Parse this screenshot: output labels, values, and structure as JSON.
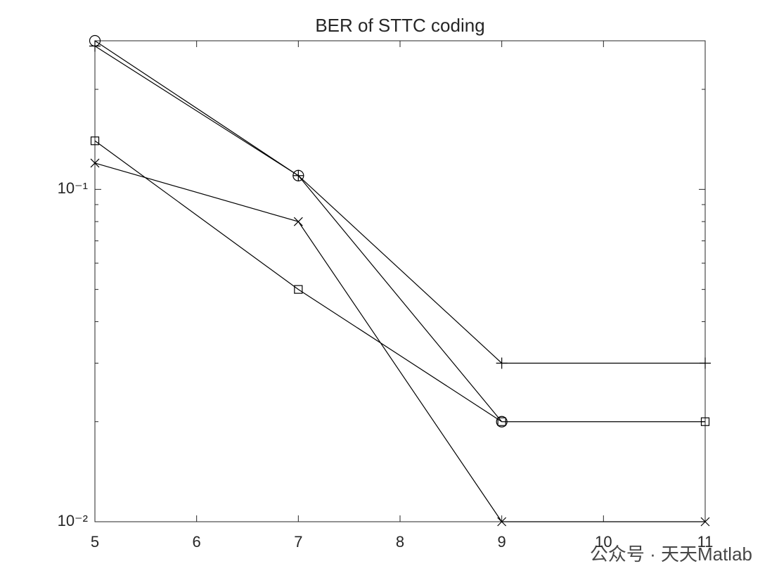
{
  "chart_data": {
    "type": "line",
    "title": "BER of STTC coding",
    "x": [
      5,
      7,
      9,
      11
    ],
    "series": [
      {
        "marker": "circle",
        "color": "#000000",
        "values": [
          0.28,
          0.11,
          0.02,
          null
        ]
      },
      {
        "marker": "plus",
        "color": "#000000",
        "values": [
          0.27,
          0.11,
          0.03,
          0.03
        ]
      },
      {
        "marker": "square",
        "color": "#000000",
        "values": [
          0.14,
          0.05,
          0.02,
          0.02
        ]
      },
      {
        "marker": "x",
        "color": "#000000",
        "values": [
          0.12,
          0.08,
          0.01,
          0.01
        ]
      }
    ],
    "xlim": [
      5,
      11
    ],
    "xticks": [
      5,
      6,
      7,
      8,
      9,
      10,
      11
    ],
    "ylim": [
      0.01,
      0.28
    ],
    "log_y": true,
    "yticks": [
      {
        "value": 0.01,
        "label": "10⁻²"
      },
      {
        "value": 0.1,
        "label": "10⁻¹"
      }
    ],
    "yminorticks": [
      0.02,
      0.03,
      0.04,
      0.05,
      0.06,
      0.07,
      0.08,
      0.09,
      0.2
    ],
    "grid": false,
    "watermark": "公众号 · 天天Matlab"
  }
}
